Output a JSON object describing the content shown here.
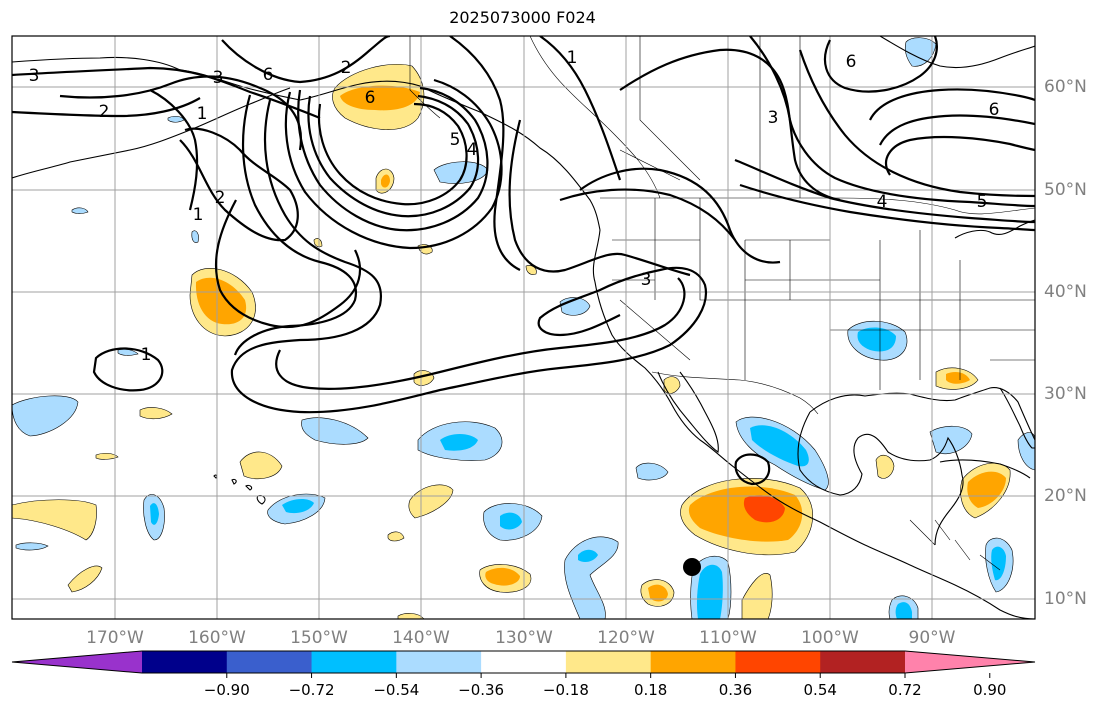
{
  "title": "2025073000 F024",
  "map": {
    "lon_min": -180,
    "lon_max": -80,
    "lat_min": 8,
    "lat_max": 65,
    "lon_labels": [
      "170°W",
      "160°W",
      "150°W",
      "140°W",
      "130°W",
      "120°W",
      "110°W",
      "100°W",
      "90°W"
    ],
    "lat_labels": [
      "10°N",
      "20°N",
      "30°N",
      "40°N",
      "50°N",
      "60°N"
    ],
    "gridlines": true,
    "contour_labels": [
      "3",
      "1",
      "2",
      "3",
      "6",
      "2",
      "6",
      "1",
      "2",
      "1",
      "5",
      "4",
      "3",
      "1",
      "3",
      "6",
      "4",
      "5",
      "6"
    ],
    "marker": {
      "type": "dot",
      "color": "#000000"
    }
  },
  "colorbar": {
    "orientation": "horizontal",
    "ticks": [
      "−0.90",
      "−0.72",
      "−0.54",
      "−0.36",
      "−0.18",
      "0.18",
      "0.36",
      "0.54",
      "0.72",
      "0.90"
    ],
    "colors": [
      "#9932cc",
      "#00008b",
      "#3a5fcd",
      "#00bfff",
      "#abdcff",
      "#ffffff",
      "#ffe88a",
      "#ffa500",
      "#ff4500",
      "#b22222",
      "#ff82ab"
    ]
  },
  "fill_colors": {
    "neg1": "#abdcff",
    "neg2": "#00bfff",
    "pos1": "#ffe88a",
    "pos2": "#ffa500",
    "pos3": "#ff4500"
  }
}
